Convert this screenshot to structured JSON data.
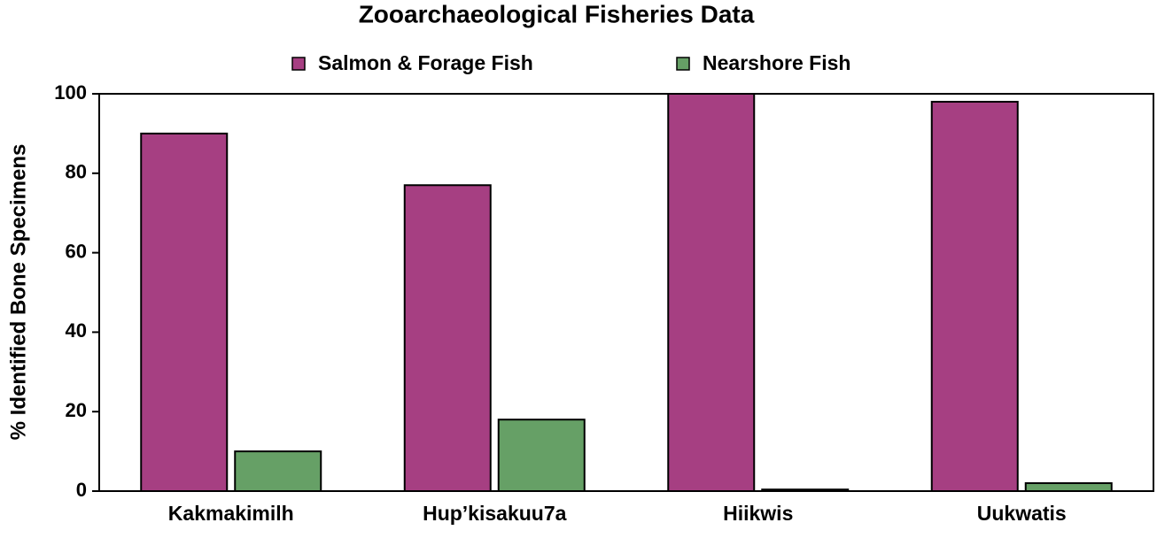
{
  "chart_data": {
    "type": "bar",
    "title": "Zooarchaeological Fisheries Data",
    "y_label": "% Identified Bone Specimens",
    "categories": [
      "Kakmakimilh",
      "Hup’kisakuu7a",
      "Hiikwis",
      "Uukwatis"
    ],
    "series": [
      {
        "name": "Salmon & Forage Fish",
        "color": "#a63f82",
        "values": [
          90,
          77,
          100,
          98
        ]
      },
      {
        "name": "Nearshore Fish",
        "color": "#66a066",
        "values": [
          10,
          18,
          0.4,
          2
        ]
      }
    ],
    "ylim": [
      0,
      100
    ],
    "yticks": [
      0,
      20,
      40,
      60,
      80,
      100
    ],
    "grid": false,
    "legend": "top"
  }
}
